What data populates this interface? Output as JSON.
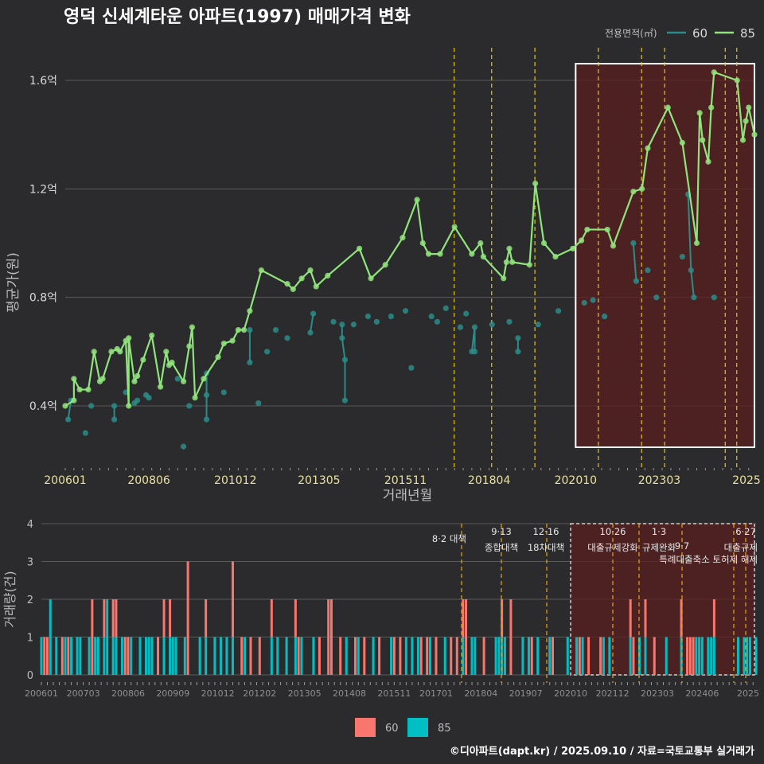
{
  "title": "영덕 신세계타운 아파트(1997) 매매가격 변화",
  "footer": "©디아파트(dapt.kr) / 2025.09.10 / 자료=국토교통부 실거래가",
  "colors": {
    "bg": "#2b2b2d",
    "grid": "#5a5a5a",
    "line60": "#2a8c88",
    "line85": "#90e47c",
    "bar60": "#f8766d",
    "bar85": "#00bfc4",
    "policy": "#e6c619",
    "policyBar": "#e6a619",
    "highlightFill": "#5a1f1f",
    "text": "#d9d9d9",
    "axisText": "#e8e0a0"
  },
  "chart_data": [
    {
      "type": "line",
      "title": "영덕 신세계타운 아파트(1997) 매매가격 변화",
      "xlabel": "거래년월",
      "ylabel": "평균가(원)",
      "x_ticks": [
        "200601",
        "200806",
        "201012",
        "201305",
        "201511",
        "201804",
        "202010",
        "202303",
        "2025"
      ],
      "y_ticks": [
        "0.4억",
        "0.8억",
        "1.2억",
        "1.6억"
      ],
      "legend_title": "전용면적(㎡)",
      "legend_position": "top-right",
      "series": [
        {
          "name": "60",
          "points": [
            [
              "2006-02",
              0.35
            ],
            [
              "2006-03",
              0.42
            ],
            [
              "2006-08",
              0.3
            ],
            [
              "2006-10",
              0.4
            ],
            [
              "2007-06",
              0.4
            ],
            [
              "2007-06",
              0.35
            ],
            [
              "2007-10",
              0.45
            ],
            [
              "2008-01",
              0.41
            ],
            [
              "2008-02",
              0.42
            ],
            [
              "2008-05",
              0.44
            ],
            [
              "2008-06",
              0.43
            ],
            [
              "2009-04",
              0.5
            ],
            [
              "2009-06",
              0.25
            ],
            [
              "2009-08",
              0.4
            ],
            [
              "2010-02",
              0.35
            ],
            [
              "2010-02",
              0.52
            ],
            [
              "2010-02",
              0.44
            ],
            [
              "2010-08",
              0.45
            ],
            [
              "2011-05",
              0.56
            ],
            [
              "2011-05",
              0.68
            ],
            [
              "2011-08",
              0.41
            ],
            [
              "2011-11",
              0.6
            ],
            [
              "2012-02",
              0.68
            ],
            [
              "2012-06",
              0.65
            ],
            [
              "2013-02",
              0.67
            ],
            [
              "2013-03",
              0.74
            ],
            [
              "2013-10",
              0.71
            ],
            [
              "2014-01",
              0.7
            ],
            [
              "2014-01",
              0.65
            ],
            [
              "2014-02",
              0.57
            ],
            [
              "2014-02",
              0.42
            ],
            [
              "2014-05",
              0.7
            ],
            [
              "2014-10",
              0.73
            ],
            [
              "2015-01",
              0.71
            ],
            [
              "2015-06",
              0.73
            ],
            [
              "2015-11",
              0.75
            ],
            [
              "2016-01",
              0.54
            ],
            [
              "2016-08",
              0.73
            ],
            [
              "2016-10",
              0.71
            ],
            [
              "2017-01",
              0.76
            ],
            [
              "2017-06",
              0.69
            ],
            [
              "2017-08",
              0.74
            ],
            [
              "2017-10",
              0.6
            ],
            [
              "2017-11",
              0.69
            ],
            [
              "2017-11",
              0.6
            ],
            [
              "2018-05",
              0.7
            ],
            [
              "2018-11",
              0.71
            ],
            [
              "2019-02",
              0.65
            ],
            [
              "2019-02",
              0.6
            ],
            [
              "2019-09",
              0.7
            ],
            [
              "2020-04",
              0.75
            ],
            [
              "2021-01",
              0.78
            ],
            [
              "2021-04",
              0.79
            ],
            [
              "2021-08",
              0.73
            ],
            [
              "2022-06",
              1.0
            ],
            [
              "2022-07",
              0.86
            ],
            [
              "2022-11",
              0.9
            ],
            [
              "2023-02",
              0.8
            ],
            [
              "2023-11",
              0.95
            ],
            [
              "2024-01",
              1.18
            ],
            [
              "2024-02",
              0.9
            ],
            [
              "2024-03",
              0.8
            ],
            [
              "2024-10",
              0.8
            ]
          ]
        },
        {
          "name": "85",
          "points": [
            [
              "2006-01",
              0.4
            ],
            [
              "2006-04",
              0.42
            ],
            [
              "2006-04",
              0.5
            ],
            [
              "2006-06",
              0.46
            ],
            [
              "2006-09",
              0.46
            ],
            [
              "2006-11",
              0.6
            ],
            [
              "2007-01",
              0.49
            ],
            [
              "2007-02",
              0.5
            ],
            [
              "2007-05",
              0.6
            ],
            [
              "2007-07",
              0.61
            ],
            [
              "2007-08",
              0.6
            ],
            [
              "2007-10",
              0.64
            ],
            [
              "2007-11",
              0.4
            ],
            [
              "2007-11",
              0.65
            ],
            [
              "2008-01",
              0.49
            ],
            [
              "2008-02",
              0.51
            ],
            [
              "2008-04",
              0.57
            ],
            [
              "2008-07",
              0.66
            ],
            [
              "2008-10",
              0.47
            ],
            [
              "2008-12",
              0.6
            ],
            [
              "2009-01",
              0.55
            ],
            [
              "2009-02",
              0.56
            ],
            [
              "2009-06",
              0.49
            ],
            [
              "2009-08",
              0.62
            ],
            [
              "2009-09",
              0.69
            ],
            [
              "2009-10",
              0.43
            ],
            [
              "2010-01",
              0.5
            ],
            [
              "2010-06",
              0.58
            ],
            [
              "2010-08",
              0.63
            ],
            [
              "2010-11",
              0.64
            ],
            [
              "2011-01",
              0.68
            ],
            [
              "2011-03",
              0.68
            ],
            [
              "2011-05",
              0.75
            ],
            [
              "2011-09",
              0.9
            ],
            [
              "2012-06",
              0.85
            ],
            [
              "2012-08",
              0.83
            ],
            [
              "2012-11",
              0.87
            ],
            [
              "2013-02",
              0.9
            ],
            [
              "2013-04",
              0.84
            ],
            [
              "2013-08",
              0.88
            ],
            [
              "2014-07",
              0.98
            ],
            [
              "2014-11",
              0.87
            ],
            [
              "2015-04",
              0.92
            ],
            [
              "2015-10",
              1.02
            ],
            [
              "2016-03",
              1.16
            ],
            [
              "2016-05",
              1.0
            ],
            [
              "2016-07",
              0.96
            ],
            [
              "2016-11",
              0.96
            ],
            [
              "2017-04",
              1.06
            ],
            [
              "2017-10",
              0.96
            ],
            [
              "2018-01",
              1.0
            ],
            [
              "2018-02",
              0.95
            ],
            [
              "2018-09",
              0.87
            ],
            [
              "2018-10",
              0.93
            ],
            [
              "2018-11",
              0.98
            ],
            [
              "2018-12",
              0.93
            ],
            [
              "2019-06",
              0.92
            ],
            [
              "2019-08",
              1.22
            ],
            [
              "2019-11",
              1.0
            ],
            [
              "2020-03",
              0.95
            ],
            [
              "2020-09",
              0.98
            ],
            [
              "2020-12",
              1.01
            ],
            [
              "2021-02",
              1.05
            ],
            [
              "2021-09",
              1.05
            ],
            [
              "2021-11",
              0.99
            ],
            [
              "2022-06",
              1.19
            ],
            [
              "2022-09",
              1.2
            ],
            [
              "2022-11",
              1.35
            ],
            [
              "2023-06",
              1.5
            ],
            [
              "2023-11",
              1.37
            ],
            [
              "2024-04",
              1.0
            ],
            [
              "2024-05",
              1.48
            ],
            [
              "2024-06",
              1.38
            ],
            [
              "2024-08",
              1.3
            ],
            [
              "2024-09",
              1.5
            ],
            [
              "2024-10",
              1.63
            ],
            [
              "2025-06",
              1.6
            ],
            [
              "2025-08",
              1.38
            ],
            [
              "2025-09",
              1.45
            ],
            [
              "2025-10",
              1.5
            ],
            [
              "2025-12",
              1.4
            ]
          ]
        }
      ],
      "policy_lines": [
        "8·2 대책",
        "9·13 종합대책",
        "12·16 18차대책",
        "10·26 대출규제강화",
        "1·3 규제완화",
        "9·7 특례대출축소 토허제 해제",
        "6·27 대출규제"
      ],
      "highlight_period": [
        "2020-10",
        "2025-09"
      ],
      "grid": true
    },
    {
      "type": "bar",
      "xlabel": "",
      "ylabel": "거래량(건)",
      "x_ticks": [
        "200601",
        "200703",
        "200806",
        "200909",
        "201012",
        "201202",
        "201305",
        "201408",
        "201511",
        "201701",
        "201804",
        "201907",
        "202010",
        "202112",
        "202303",
        "202406",
        "2025"
      ],
      "y_ticks": [
        "0",
        "1",
        "2",
        "3",
        "4"
      ],
      "ylim": [
        0,
        4
      ],
      "legend": [
        "60",
        "85"
      ],
      "legend_position": "bottom",
      "annotations": [
        "8·2 대책",
        "9·13",
        "종합대책",
        "12·16",
        "18차대책",
        "10·26",
        "대출규제강화",
        "1·3",
        "규제완화",
        "9·7",
        "특례대출축소 토허제 해제",
        "6·27",
        "대출규제"
      ]
    }
  ]
}
